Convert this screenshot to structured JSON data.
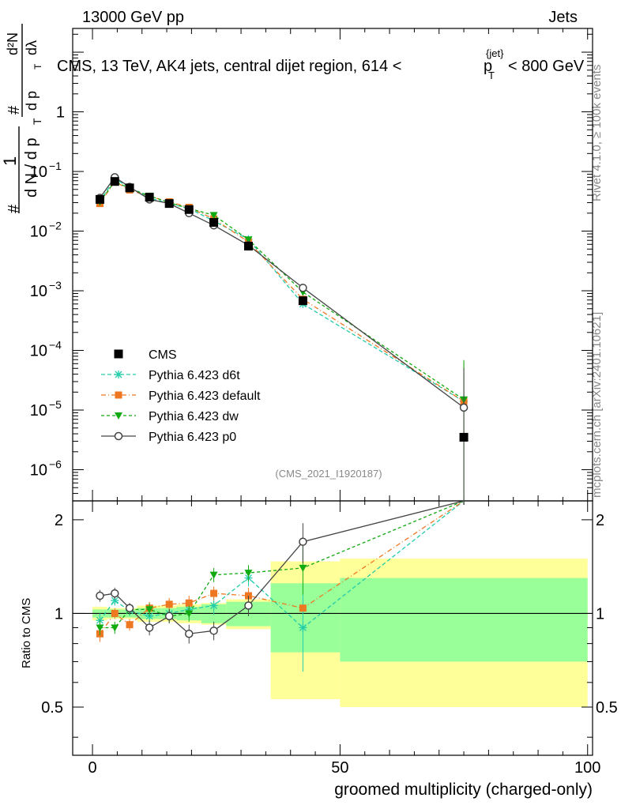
{
  "header": {
    "left": "13000 GeV pp",
    "right": "Jets"
  },
  "side": {
    "rivet": "Rivet 4.1.0, ≥ 100k events",
    "mcplots": "mcplots.cern.ch [arXiv:2401.10621]"
  },
  "ylabel_main": "1/N dN/dλ (per dp_T)",
  "ylabel_parts": {
    "one": "1",
    "hash": "#",
    "dN": "d N / d p",
    "T": "T",
    "hash2": "#",
    "d2N": "d²N",
    "dpTdl": "d p",
    "T2": "T",
    "dl": "dλ"
  },
  "chart_data": {
    "type": "line",
    "title": "CMS, 13 TeV, AK4 jets, central dijet region, 614 <",
    "title_pt": "p",
    "title_sub": "T",
    "title_sup": "{jet}",
    "title_end": "< 800 GeV",
    "watermark": "(CMS_2021_I1920187)",
    "xlabel": "groomed multiplicity (charged-only)",
    "ylabel_ratio": "Ratio to CMS",
    "xlim": [
      -4,
      101
    ],
    "ylim_main": [
      3e-07,
      25
    ],
    "ylim_ratio": [
      0.35,
      2.3
    ],
    "x_ticks": [
      0,
      50,
      100
    ],
    "y_ticks_main": [
      {
        "v": 1e-06,
        "base": "10",
        "exp": "−6"
      },
      {
        "v": 1e-05,
        "base": "10",
        "exp": "−5"
      },
      {
        "v": 0.0001,
        "base": "10",
        "exp": "−4"
      },
      {
        "v": 0.001,
        "base": "10",
        "exp": "−3"
      },
      {
        "v": 0.01,
        "base": "10",
        "exp": "−2"
      },
      {
        "v": 0.1,
        "base": "10",
        "exp": "−1"
      },
      {
        "v": 1,
        "base": "1",
        "exp": ""
      }
    ],
    "y_ticks_ratio": [
      {
        "v": 0.5,
        "label": "0.5"
      },
      {
        "v": 1,
        "label": "1"
      },
      {
        "v": 2,
        "label": "2"
      }
    ],
    "data": {
      "name": "CMS",
      "x": [
        1.5,
        4.5,
        7.5,
        11.5,
        15.5,
        19.5,
        24.5,
        31.5,
        42.5,
        75
      ],
      "y": [
        0.034,
        0.068,
        0.053,
        0.037,
        0.029,
        0.023,
        0.014,
        0.0056,
        0.00068,
        3.5e-06
      ],
      "xlo": [
        0,
        3,
        6,
        9,
        14,
        17,
        22,
        27,
        36,
        50
      ],
      "xhi": [
        3,
        6,
        9,
        14,
        17,
        22,
        27,
        36,
        50,
        100
      ],
      "band_stat": [
        0.03,
        0.03,
        0.03,
        0.04,
        0.04,
        0.05,
        0.07,
        0.09,
        0.25,
        0.3
      ],
      "band_tot": [
        0.05,
        0.04,
        0.04,
        0.06,
        0.06,
        0.07,
        0.08,
        0.11,
        0.47,
        0.5
      ]
    },
    "series": [
      {
        "name": "Pythia 6.423 d6t",
        "color": "#22ccaa",
        "marker": "star",
        "dash": "5,3",
        "y": [
          0.032,
          0.075,
          0.054,
          0.036,
          0.029,
          0.024,
          0.0148,
          0.0073,
          0.0006,
          1.4e-05
        ],
        "ratio": [
          0.95,
          1.1,
          1.02,
          0.98,
          1.0,
          1.03,
          1.06,
          1.3,
          0.9,
          4.0
        ],
        "err": [
          0.05,
          0.04,
          0.04,
          0.05,
          0.05,
          0.06,
          0.07,
          0.08,
          0.25,
          0.0
        ]
      },
      {
        "name": "Pythia 6.423 default",
        "color": "#ee7722",
        "marker": "square",
        "dash": "6,3,1,3",
        "y": [
          0.029,
          0.068,
          0.049,
          0.038,
          0.031,
          0.025,
          0.016,
          0.0066,
          0.00072,
          1.4e-05
        ],
        "ratio": [
          0.86,
          1.0,
          0.92,
          1.04,
          1.07,
          1.08,
          1.16,
          1.14,
          1.04,
          4.0
        ],
        "err": [
          0.05,
          0.04,
          0.04,
          0.05,
          0.05,
          0.06,
          0.06,
          0.07,
          0.0,
          0.0
        ]
      },
      {
        "name": "Pythia 6.423 dw",
        "color": "#11aa11",
        "marker": "tri",
        "dash": "4,3",
        "y": [
          0.031,
          0.068,
          0.052,
          0.039,
          0.03,
          0.024,
          0.0185,
          0.0072,
          0.00095,
          1.5e-05
        ],
        "ratio": [
          0.9,
          0.9,
          1.03,
          1.03,
          0.98,
          1.0,
          1.33,
          1.35,
          1.4,
          4.0
        ],
        "err": [
          0.05,
          0.04,
          0.04,
          0.05,
          0.05,
          0.06,
          0.07,
          0.08,
          0.25,
          0.0
        ]
      },
      {
        "name": "Pythia 6.423 p0",
        "color": "#444444",
        "marker": "circle",
        "dash": "",
        "y": [
          0.036,
          0.08,
          0.055,
          0.034,
          0.029,
          0.02,
          0.0125,
          0.0058,
          0.00112,
          1.1e-05
        ],
        "ratio": [
          1.14,
          1.16,
          1.04,
          0.9,
          0.98,
          0.86,
          0.88,
          1.06,
          1.7,
          3.1
        ],
        "err": [
          0.05,
          0.05,
          0.04,
          0.05,
          0.05,
          0.06,
          0.06,
          0.08,
          0.25,
          0.0
        ]
      }
    ]
  }
}
